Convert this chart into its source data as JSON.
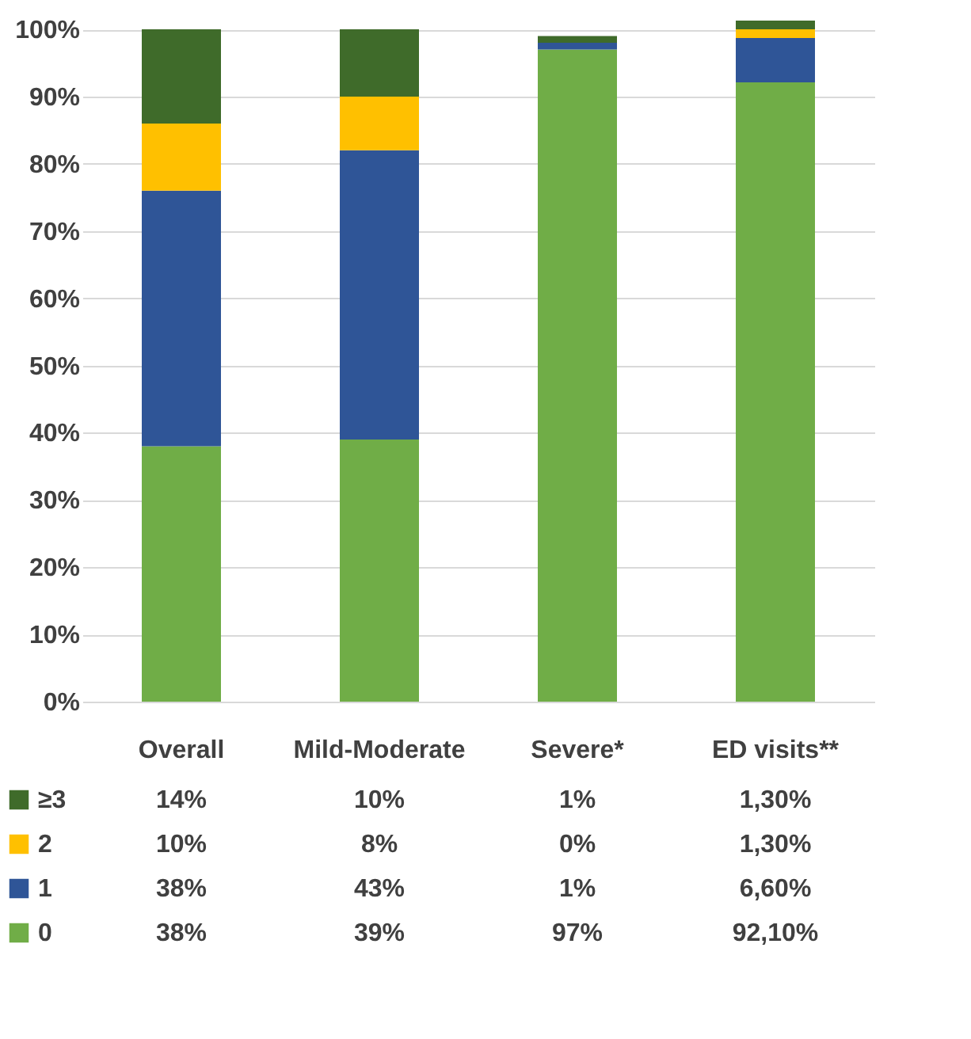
{
  "chart_data": {
    "type": "bar",
    "stacked": true,
    "categories": [
      "Overall",
      "Mild-Moderate",
      "Severe*",
      "ED visits**"
    ],
    "series": [
      {
        "name": "0",
        "color": "#70ad47",
        "values": [
          38,
          39,
          97,
          92.1
        ],
        "value_labels": [
          "38%",
          "39%",
          "97%",
          "92,10%"
        ]
      },
      {
        "name": "1",
        "color": "#2f5597",
        "values": [
          38,
          43,
          1,
          6.6
        ],
        "value_labels": [
          "38%",
          "43%",
          "1%",
          "6,60%"
        ]
      },
      {
        "name": "2",
        "color": "#ffc000",
        "values": [
          10,
          8,
          0,
          1.3
        ],
        "value_labels": [
          "10%",
          "8%",
          "0%",
          "1,30%"
        ]
      },
      {
        "name": "≥3",
        "color": "#3f6b2a",
        "values": [
          14,
          10,
          1,
          1.3
        ],
        "value_labels": [
          "14%",
          "10%",
          "1%",
          "1,30%"
        ]
      }
    ],
    "ylim": [
      0,
      101.3
    ],
    "yticks": [
      {
        "value": 0,
        "label": "0%"
      },
      {
        "value": 10,
        "label": "10%"
      },
      {
        "value": 20,
        "label": "20%"
      },
      {
        "value": 30,
        "label": "30%"
      },
      {
        "value": 40,
        "label": "40%"
      },
      {
        "value": 50,
        "label": "50%"
      },
      {
        "value": 60,
        "label": "60%"
      },
      {
        "value": 70,
        "label": "70%"
      },
      {
        "value": 80,
        "label": "80%"
      },
      {
        "value": 90,
        "label": "90%"
      },
      {
        "value": 100,
        "label": "100%"
      }
    ],
    "grid": "y",
    "legend": "bottom"
  }
}
